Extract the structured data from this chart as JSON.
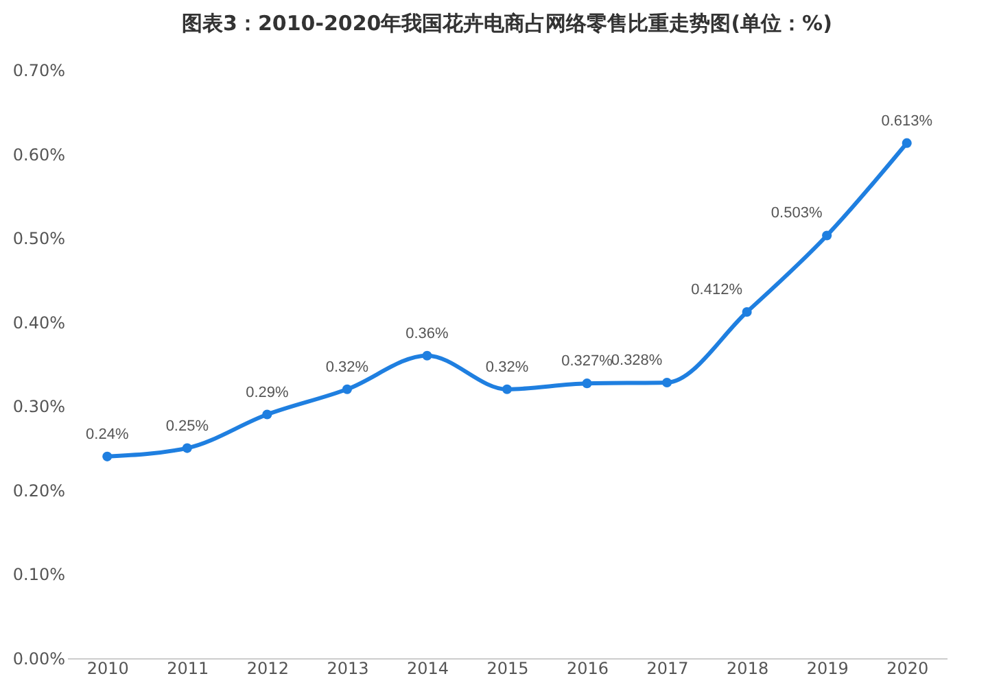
{
  "chart_data": {
    "type": "line",
    "title": "图表3：2010-2020年我国花卉电商占网络零售比重走势图(单位：%)",
    "categories": [
      "2010",
      "2011",
      "2012",
      "2013",
      "2014",
      "2015",
      "2016",
      "2017",
      "2018",
      "2019",
      "2020"
    ],
    "series": [
      {
        "color": "#1f7fe0",
        "values": [
          0.24,
          0.25,
          0.29,
          0.32,
          0.36,
          0.32,
          0.327,
          0.328,
          0.412,
          0.503,
          0.613
        ],
        "value_labels": [
          "0.24%",
          "0.25%",
          "0.29%",
          "0.32%",
          "0.36%",
          "0.32%",
          "0.327%",
          "0.328%",
          "0.412%",
          "0.503%",
          "0.613%"
        ]
      }
    ],
    "ylim": [
      0,
      0.7
    ],
    "yticks": [
      {
        "value": 0,
        "label": "0.00%"
      },
      {
        "value": 0.1,
        "label": "0.10%"
      },
      {
        "value": 0.2,
        "label": "0.20%"
      },
      {
        "value": 0.3,
        "label": "0.30%"
      },
      {
        "value": 0.4,
        "label": "0.40%"
      },
      {
        "value": 0.5,
        "label": "0.50%"
      },
      {
        "value": 0.6,
        "label": "0.60%"
      },
      {
        "value": 0.7,
        "label": "0.70%"
      }
    ],
    "grid": false,
    "marker": "circle",
    "line_style": "solid"
  }
}
